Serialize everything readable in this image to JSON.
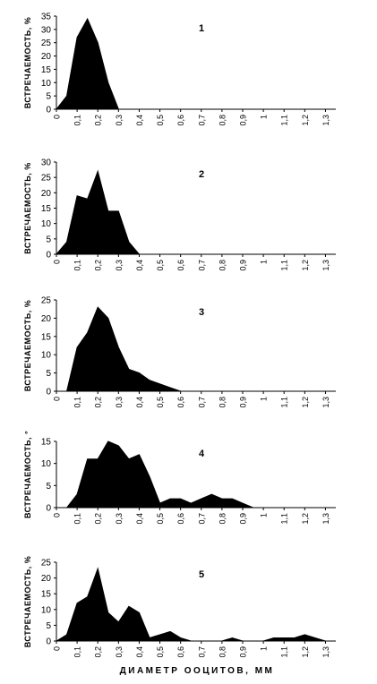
{
  "xlabel": "ДИАМЕТР ООЦИТОВ, ММ",
  "chart_data": [
    {
      "type": "area",
      "title": "1",
      "ylabel": "ВСТРЕЧАЕМОСТЬ, %",
      "color": "#000000",
      "x": [
        0,
        0.05,
        0.1,
        0.15,
        0.2,
        0.25,
        0.3
      ],
      "values": [
        0,
        5,
        27,
        34,
        25,
        10,
        0
      ],
      "xlim": [
        0,
        1.35
      ],
      "ylim": [
        0,
        35
      ],
      "yticks": [
        0,
        5,
        10,
        15,
        20,
        25,
        30,
        35
      ],
      "xticks": [
        0,
        {
          "value": 0.1,
          "label": "0,1"
        },
        {
          "value": 0.2,
          "label": "0,2"
        },
        {
          "value": 0.3,
          "label": "0,3"
        },
        {
          "value": 0.4,
          "label": "0,4"
        },
        {
          "value": 0.5,
          "label": "0,5"
        },
        {
          "value": 0.6,
          "label": "0,6"
        },
        {
          "value": 0.7,
          "label": "0,7"
        },
        {
          "value": 0.8,
          "label": "0,8"
        },
        {
          "value": 0.9,
          "label": "0,9"
        },
        1,
        {
          "value": 1.1,
          "label": "1,1"
        },
        {
          "value": 1.2,
          "label": "1,2"
        },
        {
          "value": 1.3,
          "label": "1,3"
        }
      ]
    },
    {
      "type": "area",
      "title": "2",
      "ylabel": "ВСТРЕЧАЕМОСТЬ, %",
      "color": "#000000",
      "x": [
        0,
        0.05,
        0.1,
        0.15,
        0.2,
        0.25,
        0.3,
        0.35,
        0.4
      ],
      "values": [
        0,
        4,
        19,
        18,
        27,
        14,
        14,
        4,
        0
      ],
      "xlim": [
        0,
        1.35
      ],
      "ylim": [
        0,
        30
      ],
      "yticks": [
        0,
        5,
        10,
        15,
        20,
        25,
        30
      ],
      "xticks": [
        0,
        {
          "value": 0.1,
          "label": "0,1"
        },
        {
          "value": 0.2,
          "label": "0,2"
        },
        {
          "value": 0.3,
          "label": "0,3"
        },
        {
          "value": 0.4,
          "label": "0,4"
        },
        {
          "value": 0.5,
          "label": "0,5"
        },
        {
          "value": 0.6,
          "label": "0,6"
        },
        {
          "value": 0.7,
          "label": "0,7"
        },
        {
          "value": 0.8,
          "label": "0,8"
        },
        {
          "value": 0.9,
          "label": "0,9"
        },
        1,
        {
          "value": 1.1,
          "label": "1,1"
        },
        {
          "value": 1.2,
          "label": "1,2"
        },
        {
          "value": 1.3,
          "label": "1,3"
        }
      ]
    },
    {
      "type": "area",
      "title": "3",
      "ylabel": "ВСТРЕЧАЕМОСТЬ, %",
      "color": "#000000",
      "x": [
        0.05,
        0.1,
        0.15,
        0.2,
        0.25,
        0.3,
        0.35,
        0.4,
        0.45,
        0.5,
        0.55,
        0.6
      ],
      "values": [
        0,
        12,
        16,
        23,
        20,
        12,
        6,
        5,
        3,
        2,
        1,
        0
      ],
      "xlim": [
        0,
        1.35
      ],
      "ylim": [
        0,
        25
      ],
      "yticks": [
        0,
        5,
        10,
        15,
        20,
        25
      ],
      "xticks": [
        0,
        {
          "value": 0.1,
          "label": "0,1"
        },
        {
          "value": 0.2,
          "label": "0,2"
        },
        {
          "value": 0.3,
          "label": "0,3"
        },
        {
          "value": 0.4,
          "label": "0,4"
        },
        {
          "value": 0.5,
          "label": "0,5"
        },
        {
          "value": 0.6,
          "label": "0,6"
        },
        {
          "value": 0.7,
          "label": "0,7"
        },
        {
          "value": 0.8,
          "label": "0,8"
        },
        {
          "value": 0.9,
          "label": "0,9"
        },
        1,
        {
          "value": 1.1,
          "label": "1,1"
        },
        {
          "value": 1.2,
          "label": "1,2"
        },
        {
          "value": 1.3,
          "label": "1,3"
        }
      ]
    },
    {
      "type": "area",
      "title": "4",
      "ylabel": "ВСТРЕЧАЕМОСТЬ, °",
      "color": "#000000",
      "x": [
        0.05,
        0.1,
        0.15,
        0.2,
        0.25,
        0.3,
        0.35,
        0.4,
        0.45,
        0.5,
        0.55,
        0.6,
        0.65,
        0.7,
        0.75,
        0.8,
        0.85,
        0.9,
        0.95
      ],
      "values": [
        0,
        3,
        11,
        11,
        15,
        14,
        11,
        12,
        7,
        1,
        2,
        2,
        1,
        2,
        3,
        2,
        2,
        1,
        0
      ],
      "xlim": [
        0,
        1.35
      ],
      "ylim": [
        0,
        15
      ],
      "yticks": [
        0,
        5,
        10,
        15
      ],
      "xticks": [
        0,
        {
          "value": 0.1,
          "label": "0,1"
        },
        {
          "value": 0.2,
          "label": "0,2"
        },
        {
          "value": 0.3,
          "label": "0,3"
        },
        {
          "value": 0.4,
          "label": "0,4"
        },
        {
          "value": 0.5,
          "label": "0,5"
        },
        {
          "value": 0.6,
          "label": "0,6"
        },
        {
          "value": 0.7,
          "label": "0,7"
        },
        {
          "value": 0.8,
          "label": "0,8"
        },
        {
          "value": 0.9,
          "label": "0,9"
        },
        1,
        {
          "value": 1.1,
          "label": "1,1"
        },
        {
          "value": 1.2,
          "label": "1,2"
        },
        {
          "value": 1.3,
          "label": "1,3"
        }
      ]
    },
    {
      "type": "area",
      "title": "5",
      "ylabel": "ВСТРЕЧАЕМОСТЬ, %",
      "color": "#000000",
      "x": [
        0,
        0.05,
        0.1,
        0.15,
        0.2,
        0.25,
        0.3,
        0.35,
        0.4,
        0.45,
        0.5,
        0.55,
        0.6,
        0.65,
        0.7,
        0.75,
        0.8,
        0.85,
        0.9,
        0.95,
        1,
        1.05,
        1.1,
        1.15,
        1.2,
        1.25,
        1.3
      ],
      "values": [
        0,
        2,
        12,
        14,
        23,
        9,
        6,
        11,
        9,
        1,
        2,
        3,
        1,
        0,
        0,
        0,
        0,
        1,
        0,
        0,
        0,
        1,
        1,
        1,
        2,
        1,
        0
      ],
      "xlim": [
        0,
        1.35
      ],
      "ylim": [
        0,
        25
      ],
      "yticks": [
        0,
        5,
        10,
        15,
        20,
        25
      ],
      "xticks": [
        0,
        {
          "value": 0.1,
          "label": "0,1"
        },
        {
          "value": 0.2,
          "label": "0,2"
        },
        {
          "value": 0.3,
          "label": "0,3"
        },
        {
          "value": 0.4,
          "label": "0,4"
        },
        {
          "value": 0.5,
          "label": "0,5"
        },
        {
          "value": 0.6,
          "label": "0,6"
        },
        {
          "value": 0.7,
          "label": "0,7"
        },
        {
          "value": 0.8,
          "label": "0,8"
        },
        {
          "value": 0.9,
          "label": "0,9"
        },
        1,
        {
          "value": 1.1,
          "label": "1,1"
        },
        {
          "value": 1.2,
          "label": "1,2"
        },
        {
          "value": 1.3,
          "label": "1,3"
        }
      ]
    }
  ]
}
